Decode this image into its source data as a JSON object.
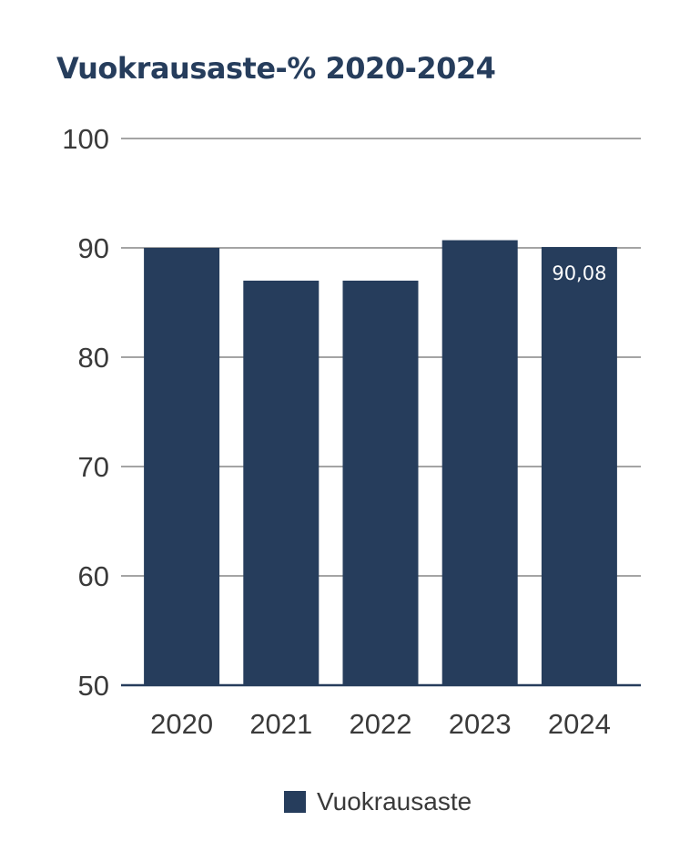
{
  "chart_data": {
    "type": "bar",
    "title": "Vuokrausaste-% 2020-2024",
    "categories": [
      "2020",
      "2021",
      "2022",
      "2023",
      "2024"
    ],
    "series": [
      {
        "name": "Vuokrausaste",
        "values": [
          90.0,
          87.0,
          87.0,
          90.7,
          90.08
        ],
        "color": "#263d5c"
      }
    ],
    "data_labels": [
      {
        "index": 4,
        "text": "90,08"
      }
    ],
    "yticks": [
      "50",
      "60",
      "70",
      "80",
      "90",
      "100"
    ],
    "ylim": [
      50,
      100
    ],
    "grid": true,
    "legend": {
      "position": "bottom-center"
    }
  }
}
